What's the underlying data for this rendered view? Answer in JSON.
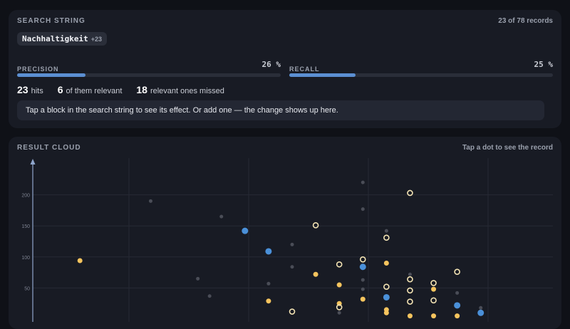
{
  "search": {
    "title": "SEARCH STRING",
    "records": "23 of 78 records",
    "chip_label": "Nachhaltigkeit",
    "chip_count": "+23",
    "precision_label": "PRECISION",
    "precision_value": "26 %",
    "precision_fraction": 0.26,
    "recall_label": "RECALL",
    "recall_value": "25 %",
    "recall_fraction": 0.25,
    "hits_num": "23",
    "hits_label": "hits",
    "relevant_num": "6",
    "relevant_label": "of them relevant",
    "missed_num": "18",
    "missed_label": "relevant ones missed",
    "hint": "Tap a block in the search string to see its effect. Or add one — the change shows up here."
  },
  "cloud": {
    "title": "RESULT CLOUD",
    "hint": "Tap a dot to see the record"
  },
  "colors": {
    "relevant_hit": "#4a90d9",
    "missed_relevant": "#f5c45e",
    "irrelevant": "#4a4d57"
  },
  "chart_data": {
    "type": "scatter",
    "y_ticks": [
      50,
      100,
      150,
      200
    ],
    "ylim": [
      0,
      250
    ],
    "xlim": [
      0,
      22
    ],
    "series": [
      {
        "kind": "faint",
        "points": [
          [
            5,
            190
          ],
          [
            7,
            65
          ],
          [
            7.5,
            37
          ],
          [
            8,
            165
          ],
          [
            10,
            57
          ],
          [
            11,
            120
          ],
          [
            11,
            84
          ],
          [
            13,
            10
          ],
          [
            14,
            220
          ],
          [
            14,
            177
          ],
          [
            14,
            63
          ],
          [
            14,
            48
          ],
          [
            15,
            142
          ],
          [
            16,
            72
          ],
          [
            18,
            42
          ],
          [
            19,
            18
          ]
        ]
      },
      {
        "kind": "filled-blue",
        "points": [
          [
            9,
            142
          ],
          [
            10,
            109
          ],
          [
            14,
            84
          ],
          [
            15,
            35
          ],
          [
            18,
            22
          ],
          [
            19,
            10
          ]
        ]
      },
      {
        "kind": "filled-orange",
        "points": [
          [
            2,
            94
          ],
          [
            10,
            29
          ],
          [
            12,
            72
          ],
          [
            13,
            55
          ],
          [
            13,
            25
          ],
          [
            14,
            32
          ],
          [
            15,
            90
          ],
          [
            15,
            15
          ],
          [
            15,
            10
          ],
          [
            16,
            5
          ],
          [
            17,
            48
          ],
          [
            17,
            5
          ],
          [
            18,
            5
          ]
        ]
      },
      {
        "kind": "hollow",
        "points": [
          [
            11,
            12
          ],
          [
            12,
            151
          ],
          [
            13,
            88
          ],
          [
            13,
            19
          ],
          [
            14,
            96
          ],
          [
            15,
            131
          ],
          [
            15,
            52
          ],
          [
            16,
            203
          ],
          [
            16,
            64
          ],
          [
            16,
            46
          ],
          [
            16,
            28
          ],
          [
            17,
            58
          ],
          [
            17,
            30
          ],
          [
            18,
            76
          ]
        ]
      }
    ]
  }
}
